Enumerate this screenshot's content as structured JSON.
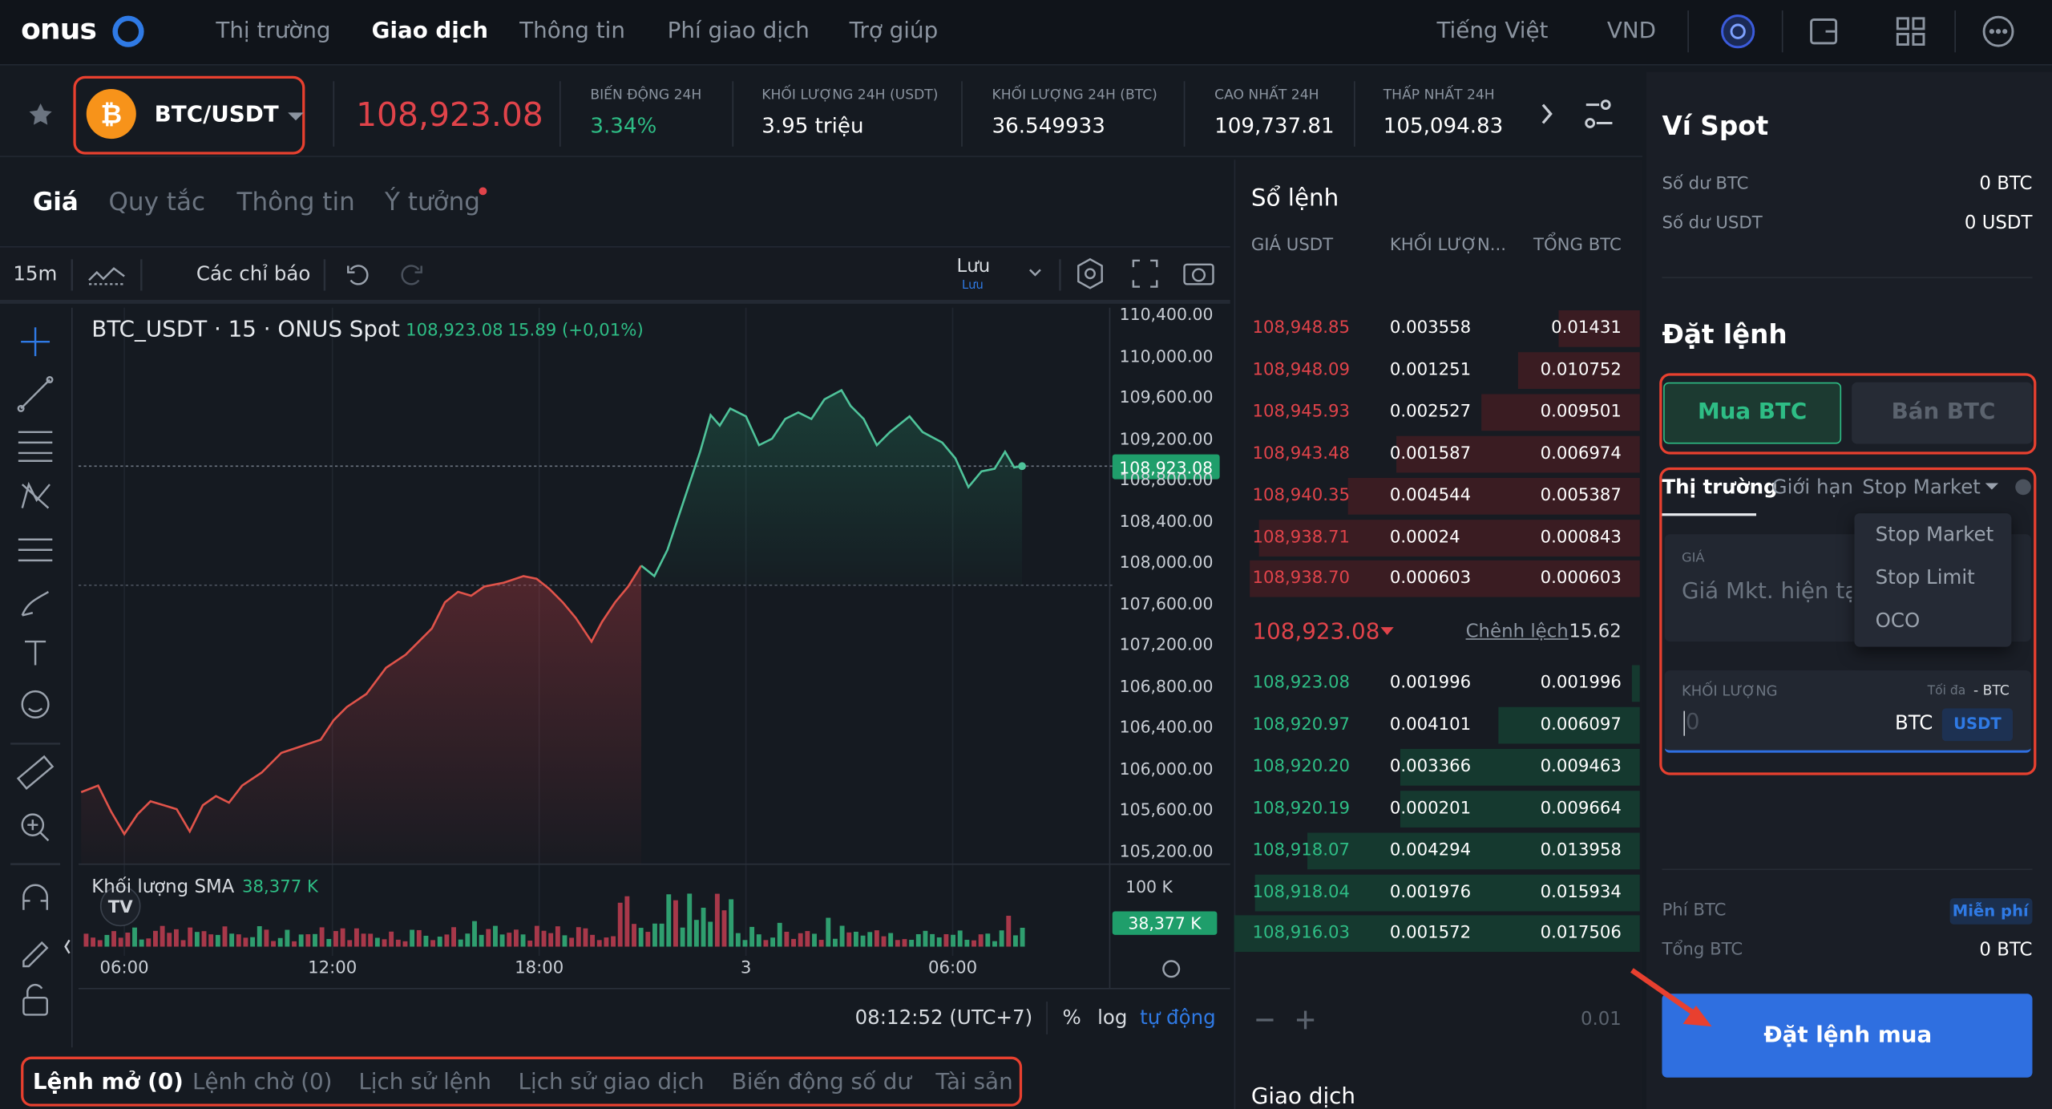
{
  "header": {
    "logo": "onus",
    "nav": [
      "Thị trường",
      "Giao dịch",
      "Thông tin",
      "Phí giao dịch",
      "Trợ giúp"
    ],
    "language": "Tiếng Việt",
    "currency": "VND"
  },
  "ticker": {
    "pair": "BTC/USDT",
    "price": "108,923.08",
    "stats": [
      {
        "label": "BIẾN ĐỘNG 24H",
        "value": "3.34%"
      },
      {
        "label": "KHỐI LƯỢNG 24H (USDT)",
        "value": "3.95 triệu"
      },
      {
        "label": "KHỐI LƯỢNG 24H (BTC)",
        "value": "36.549933"
      },
      {
        "label": "CAO NHẤT 24H",
        "value": "109,737.81"
      },
      {
        "label": "THẤP NHẤT 24H",
        "value": "105,094.83"
      }
    ]
  },
  "chart_panel": {
    "tabs": [
      "Giá",
      "Quy tắc",
      "Thông tin",
      "Ý tưởng"
    ],
    "interval": "15m",
    "indicators": "Các chỉ báo",
    "save": "Lưu",
    "save_sub": "Lưu",
    "legend_title": "BTC_USDT · 15 · ONUS Spot",
    "legend_price": "108,923.08",
    "legend_change": "15.89 (+0,01%)",
    "price_axis": [
      "110,400.00",
      "110,000.00",
      "109,600.00",
      "109,200.00",
      "108,800.00",
      "108,400.00",
      "108,000.00",
      "107,600.00",
      "107,200.00",
      "106,800.00",
      "106,400.00",
      "106,000.00",
      "105,600.00",
      "105,200.00"
    ],
    "last_price_tag": "108,923.08",
    "volume_label": "Khối lượng SMA",
    "volume_value": "38,377 K",
    "volume_axis": "100 K",
    "volume_tag": "38,377 K",
    "time_axis": [
      "06:00",
      "12:00",
      "18:00",
      "3",
      "06:00"
    ],
    "clock": "08:12:52 (UTC+7)",
    "percent": "%",
    "log": "log",
    "auto": "tự động"
  },
  "order_book": {
    "title": "Sổ lệnh",
    "headers": [
      "GIÁ USDT",
      "KHỐI LƯỢN...",
      "TỔNG BTC"
    ],
    "asks": [
      [
        "108,948.85",
        "0.003558",
        "0.01431"
      ],
      [
        "108,948.09",
        "0.001251",
        "0.010752"
      ],
      [
        "108,945.93",
        "0.002527",
        "0.009501"
      ],
      [
        "108,943.48",
        "0.001587",
        "0.006974"
      ],
      [
        "108,940.35",
        "0.004544",
        "0.005387"
      ],
      [
        "108,938.71",
        "0.00024",
        "0.000843"
      ],
      [
        "108,938.70",
        "0.000603",
        "0.000603"
      ]
    ],
    "mid_price": "108,923.08",
    "spread_label": "Chênh lệch",
    "spread": "15.62",
    "bids": [
      [
        "108,923.08",
        "0.001996",
        "0.001996"
      ],
      [
        "108,920.97",
        "0.004101",
        "0.006097"
      ],
      [
        "108,920.20",
        "0.003366",
        "0.009463"
      ],
      [
        "108,920.19",
        "0.000201",
        "0.009664"
      ],
      [
        "108,918.07",
        "0.004294",
        "0.013958"
      ],
      [
        "108,918.04",
        "0.001976",
        "0.015934"
      ],
      [
        "108,916.03",
        "0.001572",
        "0.017506"
      ]
    ],
    "step": "0.01",
    "trades_title": "Giao dịch"
  },
  "bottom_tabs": [
    "Lệnh mở (0)",
    "Lệnh chờ (0)",
    "Lịch sử lệnh",
    "Lịch sử giao dịch",
    "Biến động số dư",
    "Tài sản"
  ],
  "wallet": {
    "title": "Ví Spot",
    "rows": [
      {
        "label": "Số dư BTC",
        "value": "0 BTC"
      },
      {
        "label": "Số dư USDT",
        "value": "0 USDT"
      }
    ]
  },
  "order_form": {
    "title": "Đặt lệnh",
    "buy": "Mua BTC",
    "sell": "Bán BTC",
    "types": [
      "Thị trường",
      "Giới hạn",
      "Stop Market"
    ],
    "dropdown": [
      "Stop Market",
      "Stop Limit",
      "OCO"
    ],
    "price_label": "GIÁ",
    "price_placeholder": "Giá Mkt. hiện tại",
    "qty_label": "KHỐI LƯỢNG",
    "max_label": "Tối đa",
    "max_value": "- BTC",
    "qty_placeholder": "0",
    "qty_unit": "BTC",
    "qty_toggle": "USDT",
    "fee_label": "Phí BTC",
    "fee_value": "Miễn phí",
    "total_label": "Tổng BTC",
    "total_value": "0 BTC",
    "submit": "Đặt lệnh mua"
  }
}
